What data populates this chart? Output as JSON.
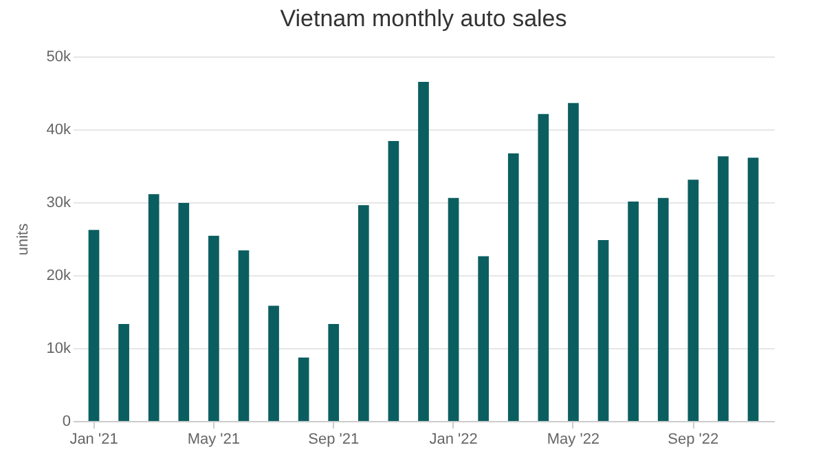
{
  "chart_data": {
    "type": "bar",
    "title": "Vietnam monthly auto sales",
    "ylabel": "units",
    "categories": [
      "Jan '21",
      null,
      null,
      null,
      "May '21",
      null,
      null,
      null,
      "Sep '21",
      null,
      null,
      null,
      "Jan '22",
      null,
      null,
      null,
      "May '22",
      null,
      null,
      null,
      "Sep '22",
      null,
      null
    ],
    "values": [
      26200,
      13300,
      31100,
      29900,
      25400,
      23400,
      15800,
      8700,
      13300,
      29600,
      38400,
      46500,
      30600,
      22600,
      36700,
      42100,
      43600,
      24800,
      30100,
      30600,
      33100,
      36300,
      36100
    ],
    "color": "#0b5e60",
    "ylim": [
      0,
      50000
    ],
    "yticks": [
      0,
      {
        "value": 10000,
        "label": "10k"
      },
      {
        "value": 20000,
        "label": "20k"
      },
      {
        "value": 30000,
        "label": "30k"
      },
      {
        "value": 40000,
        "label": "40k"
      },
      {
        "value": 50000,
        "label": "50k"
      }
    ],
    "grid": "y"
  }
}
